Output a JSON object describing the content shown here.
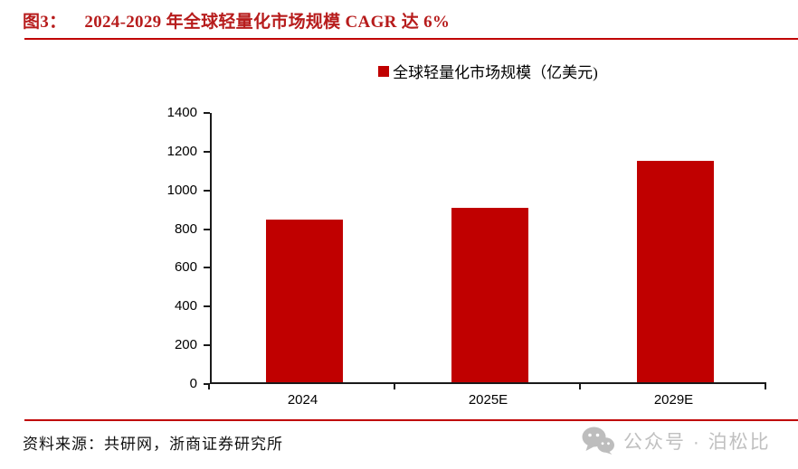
{
  "figure": {
    "label": "图3：",
    "title": "2024-2029 年全球轻量化市场规模 CAGR 达 6%"
  },
  "legend": {
    "label": "全球轻量化市场规模（亿美元)"
  },
  "chart_data": {
    "type": "bar",
    "categories": [
      "2024",
      "2025E",
      "2029E"
    ],
    "values": [
      840,
      900,
      1145
    ],
    "series_name": "全球轻量化市场规模（亿美元)",
    "title": "2024-2029 年全球轻量化市场规模 CAGR 达 6%",
    "xlabel": "",
    "ylabel": "",
    "ylim": [
      0,
      1400
    ],
    "yticks": [
      0,
      200,
      400,
      600,
      800,
      1000,
      1200,
      1400
    ],
    "grid": false,
    "legend_position": "top-center",
    "bar_color": "#c00000"
  },
  "footer": {
    "source": "资料来源：共研网，浙商证券研究所"
  },
  "watermark": {
    "icon": "wechat-icon",
    "text": "公众号 · 泊松比"
  },
  "colors": {
    "accent_red": "#c00000",
    "title_red": "#b71c1c",
    "axis_black": "#1a1a1a",
    "watermark_gray": "#c0c0c0"
  }
}
